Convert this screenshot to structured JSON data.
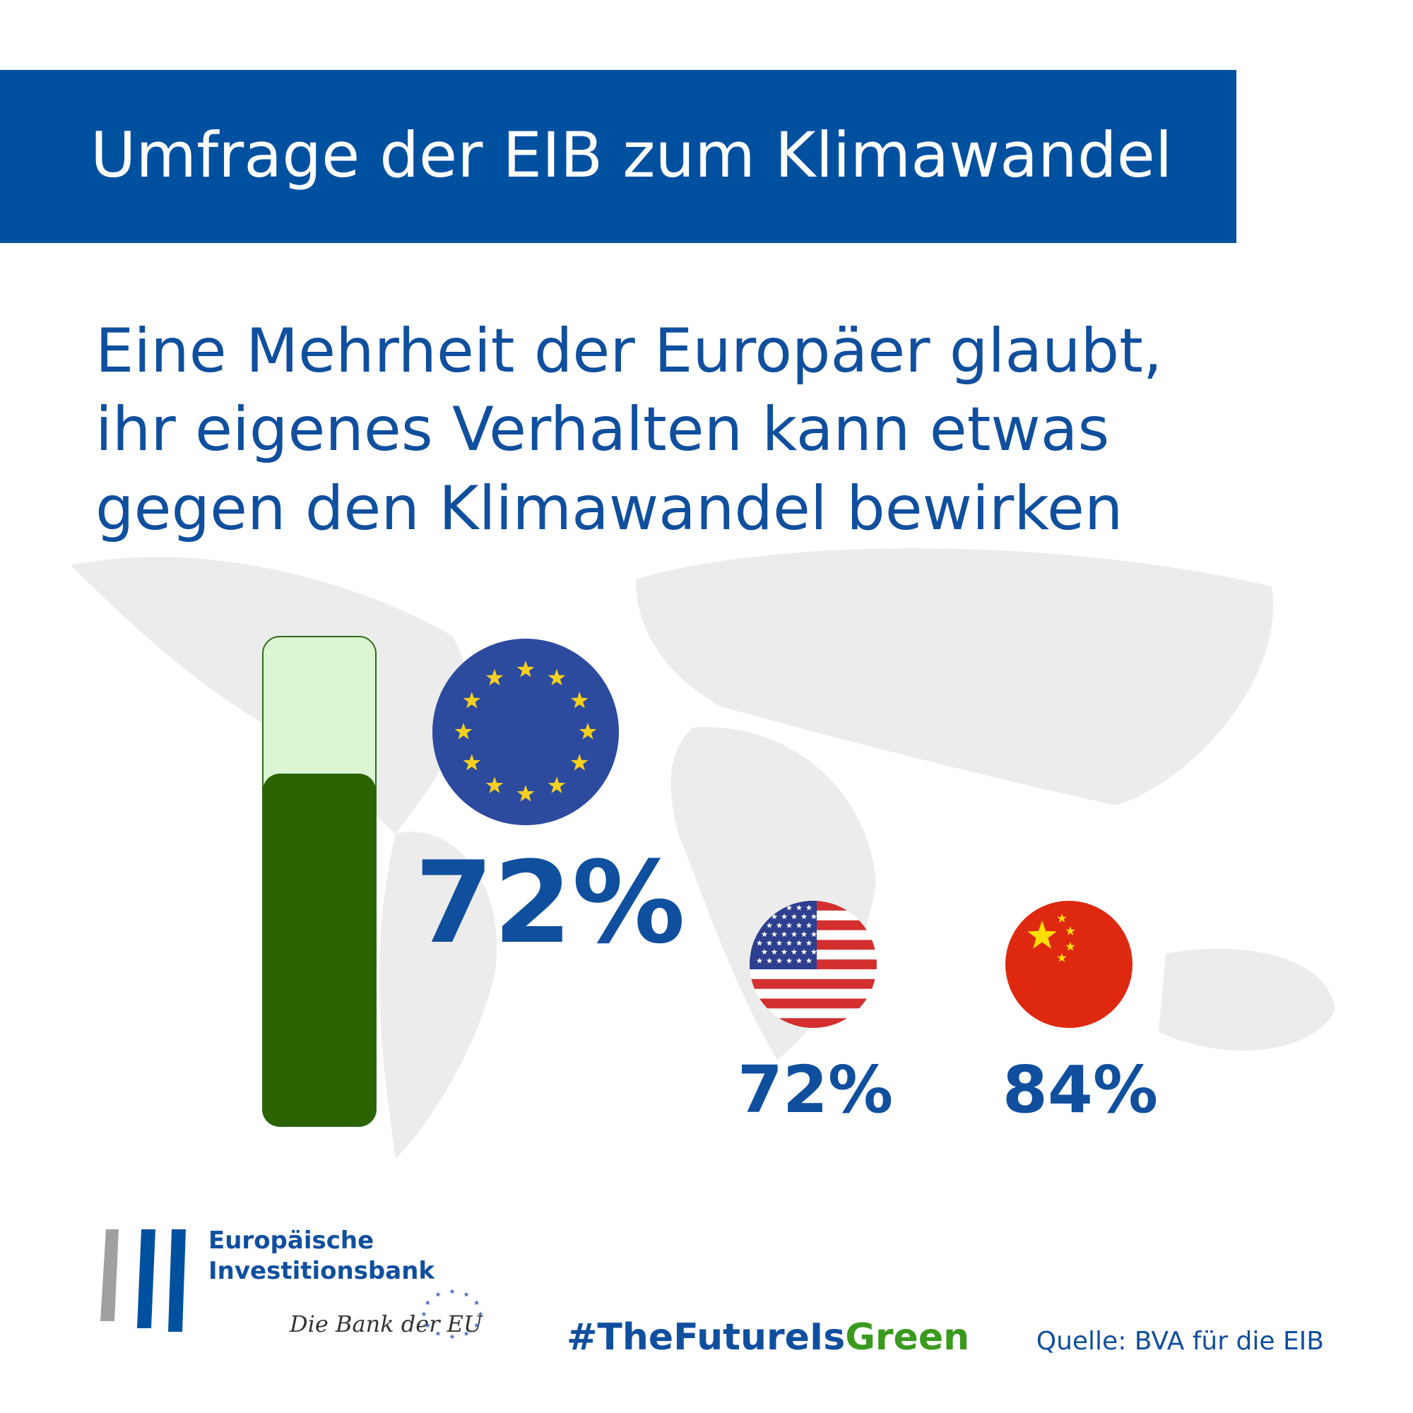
{
  "header": {
    "title": "Umfrage der EIB zum Klimawandel"
  },
  "headline": [
    "Eine Mehrheit der Europäer glaubt,",
    "ihr eigenes Verhalten kann etwas",
    "gegen den Klimawandel bewirken"
  ],
  "results": {
    "eu": {
      "value": 72,
      "label": "72%"
    },
    "usa": {
      "value": 72,
      "label": "72%"
    },
    "china": {
      "value": 84,
      "label": "84%"
    }
  },
  "footer": {
    "logo": [
      "Europäische",
      "Investitionsbank"
    ],
    "tagline": "Die Bank der EU",
    "hashtag": [
      "#TheFutureIs",
      "Green"
    ],
    "source": "Quelle: BVA für die EIB"
  }
}
